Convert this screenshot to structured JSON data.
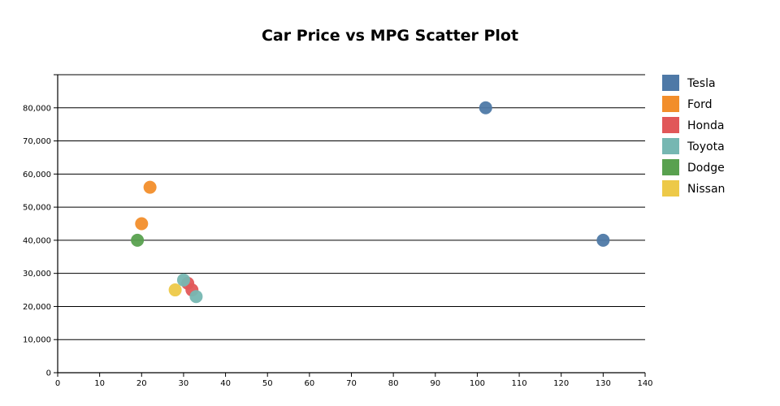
{
  "chart_data": {
    "type": "scatter",
    "title": "Car Price vs MPG Scatter Plot",
    "xlabel": "",
    "ylabel": "",
    "xlim": [
      0,
      140
    ],
    "ylim": [
      0,
      90000
    ],
    "x_ticks": [
      0,
      10,
      20,
      30,
      40,
      50,
      60,
      70,
      80,
      90,
      100,
      110,
      120,
      130,
      140
    ],
    "y_ticks": [
      0,
      10000,
      20000,
      30000,
      40000,
      50000,
      60000,
      70000,
      80000
    ],
    "x_tick_labels": [
      "0",
      "10",
      "20",
      "30",
      "40",
      "50",
      "60",
      "70",
      "80",
      "90",
      "100",
      "110",
      "120",
      "130",
      "140"
    ],
    "y_tick_labels": [
      "0",
      "10,000",
      "20,000",
      "30,000",
      "40,000",
      "50,000",
      "60,000",
      "70,000",
      "80,000"
    ],
    "grid": "horizontal",
    "legend_position": "right",
    "series": [
      {
        "name": "Tesla",
        "color": "#4e79a7",
        "points": [
          {
            "x": 102,
            "y": 80000
          },
          {
            "x": 130,
            "y": 40000
          }
        ]
      },
      {
        "name": "Ford",
        "color": "#f28e2b",
        "points": [
          {
            "x": 22,
            "y": 56000
          },
          {
            "x": 20,
            "y": 45000
          }
        ]
      },
      {
        "name": "Honda",
        "color": "#e15759",
        "points": [
          {
            "x": 31,
            "y": 27000
          },
          {
            "x": 32,
            "y": 25000
          }
        ]
      },
      {
        "name": "Toyota",
        "color": "#76b7b2",
        "points": [
          {
            "x": 30,
            "y": 28000
          },
          {
            "x": 33,
            "y": 23000
          }
        ]
      },
      {
        "name": "Dodge",
        "color": "#59a14f",
        "points": [
          {
            "x": 19,
            "y": 40000
          }
        ]
      },
      {
        "name": "Nissan",
        "color": "#edc948",
        "points": [
          {
            "x": 28,
            "y": 25000
          }
        ]
      }
    ]
  }
}
